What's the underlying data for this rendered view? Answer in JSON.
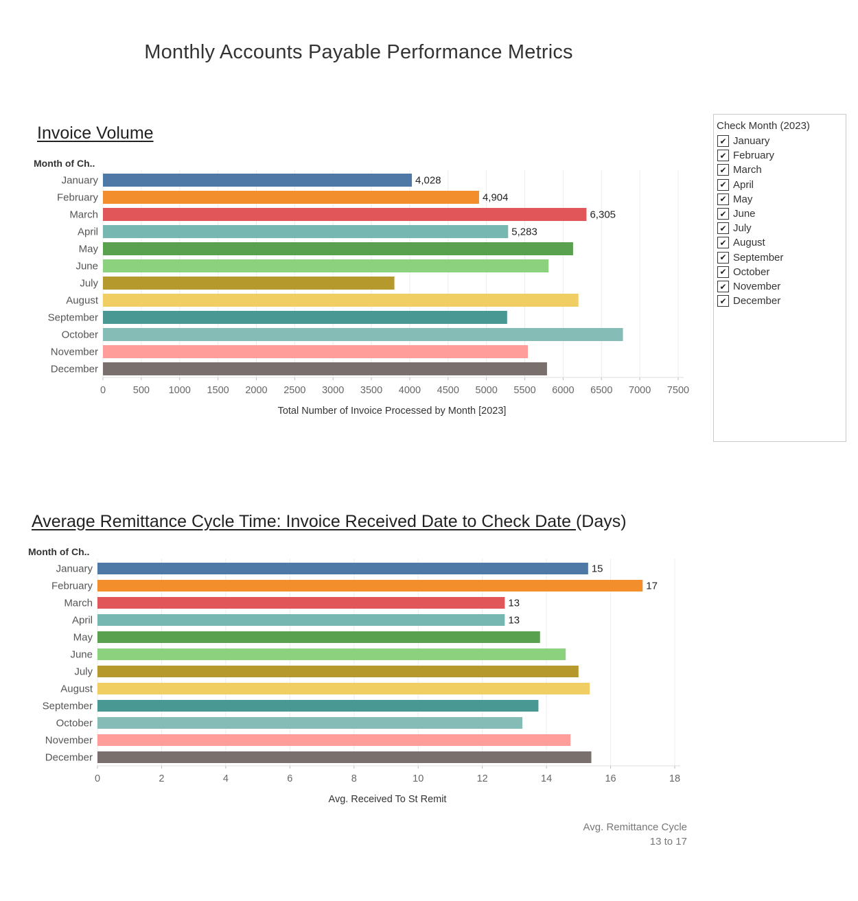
{
  "title": "Monthly Accounts Payable Performance Metrics",
  "filter": {
    "title": "Check Month (2023)",
    "items": [
      "January",
      "February",
      "March",
      "April",
      "May",
      "June",
      "July",
      "August",
      "September",
      "October",
      "November",
      "December"
    ],
    "checked": [
      true,
      true,
      true,
      true,
      true,
      true,
      true,
      true,
      true,
      true,
      true,
      true
    ]
  },
  "colors": [
    "#4e79a7",
    "#f28e2b",
    "#e15759",
    "#76b7b2",
    "#59a14f",
    "#8cd17d",
    "#b6992d",
    "#f1ce63",
    "#499894",
    "#86bcb6",
    "#ff9d9a",
    "#79706e"
  ],
  "chart_data": [
    {
      "type": "bar",
      "orientation": "horizontal",
      "title": "Invoice Volume",
      "row_header": "Month of Ch..",
      "categories": [
        "January",
        "February",
        "March",
        "April",
        "May",
        "June",
        "July",
        "August",
        "September",
        "October",
        "November",
        "December"
      ],
      "values": [
        4028,
        4904,
        6305,
        5283,
        6130,
        5810,
        3800,
        6200,
        5270,
        6780,
        5540,
        5790
      ],
      "data_labels": [
        "4,028",
        "4,904",
        "6,305",
        "5,283",
        "",
        "",
        "",
        "",
        "",
        "",
        "",
        ""
      ],
      "xlabel": "Total Number of Invoice Processed by Month [2023]",
      "xlim": [
        0,
        7500
      ],
      "xticks": [
        "0",
        "500",
        "1000",
        "1500",
        "2000",
        "2500",
        "3000",
        "3500",
        "4000",
        "4500",
        "5000",
        "5500",
        "6000",
        "6500",
        "7000",
        "7500"
      ],
      "grid": true
    },
    {
      "type": "bar",
      "orientation": "horizontal",
      "title_underlined": "Average Remittance Cycle Time: Invoice Received Date to Check Date ",
      "title_rest": "(Days)",
      "row_header": "Month of Ch..",
      "categories": [
        "January",
        "February",
        "March",
        "April",
        "May",
        "June",
        "July",
        "August",
        "September",
        "October",
        "November",
        "December"
      ],
      "values": [
        15.3,
        17.0,
        12.7,
        12.7,
        13.8,
        14.6,
        15.0,
        15.35,
        13.75,
        13.25,
        14.75,
        15.4
      ],
      "data_labels": [
        "15",
        "17",
        "13",
        "13",
        "",
        "",
        "",
        "",
        "",
        "",
        "",
        ""
      ],
      "xlabel": "Avg. Received To St Remit",
      "xlim": [
        0,
        18
      ],
      "xticks": [
        "0",
        "2",
        "4",
        "6",
        "8",
        "10",
        "12",
        "14",
        "16",
        "18"
      ],
      "grid": true,
      "legend": {
        "title": "Avg. Remittance Cycle",
        "range": "13 to 17",
        "placement": "bottom-right"
      }
    }
  ]
}
